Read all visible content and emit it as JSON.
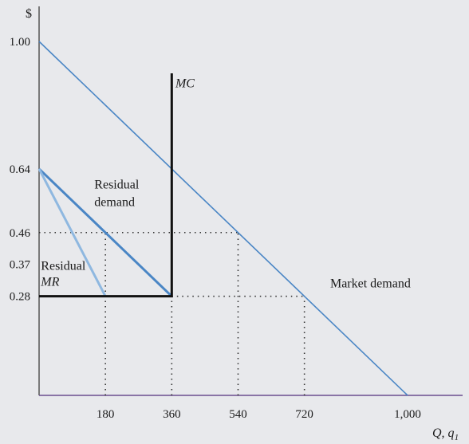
{
  "chart_data": {
    "type": "line",
    "xlabel": "Q, q",
    "xlabel_subscript": "1",
    "ylabel": "$",
    "x_ticks": [
      180,
      360,
      540,
      720,
      1000
    ],
    "x_tick_labels": [
      "180",
      "360",
      "540",
      "720",
      "1,000"
    ],
    "y_ticks": [
      1.0,
      0.64,
      0.46,
      0.37,
      0.28
    ],
    "y_tick_labels": [
      "1.00",
      "0.64",
      "0.46",
      "0.37",
      "0.28"
    ],
    "xlim": [
      0,
      1000
    ],
    "ylim": [
      0,
      1.0
    ],
    "grid": false,
    "series": [
      {
        "name": "Market demand",
        "color": "#4a86c5",
        "points": [
          [
            0,
            1.0
          ],
          [
            1000,
            0
          ]
        ]
      },
      {
        "name": "Residual demand",
        "color": "#4a86c5",
        "points": [
          [
            0,
            0.64
          ],
          [
            360,
            0.28
          ]
        ]
      },
      {
        "name": "Residual MR",
        "color": "#8fb8e0",
        "points": [
          [
            0,
            0.64
          ],
          [
            180,
            0.28
          ]
        ]
      },
      {
        "name": "MC",
        "color": "#111111",
        "points": [
          [
            0,
            0.28
          ],
          [
            360,
            0.28
          ],
          [
            360,
            0.91
          ]
        ]
      }
    ],
    "reference_lines": [
      {
        "points": [
          [
            0,
            0.46
          ],
          [
            540,
            0.46
          ]
        ]
      },
      {
        "points": [
          [
            180,
            0
          ],
          [
            180,
            0.46
          ]
        ]
      },
      {
        "points": [
          [
            540,
            0
          ],
          [
            540,
            0.46
          ]
        ]
      },
      {
        "points": [
          [
            360,
            0.28
          ],
          [
            720,
            0.28
          ]
        ]
      },
      {
        "points": [
          [
            720,
            0
          ],
          [
            720,
            0.28
          ]
        ]
      },
      {
        "points": [
          [
            360,
            0
          ],
          [
            360,
            0.28
          ]
        ]
      }
    ],
    "annotations": [
      {
        "text": "MC",
        "x": 370,
        "y": 0.87,
        "italic": true
      },
      {
        "text": "Residual",
        "x": 150,
        "y": 0.585
      },
      {
        "text": "demand",
        "x": 150,
        "y": 0.535
      },
      {
        "text": "Residual",
        "x": 5,
        "y": 0.355
      },
      {
        "text": "MR",
        "x": 5,
        "y": 0.31,
        "italic": true
      },
      {
        "text": "Market demand",
        "x": 790,
        "y": 0.305
      }
    ]
  }
}
